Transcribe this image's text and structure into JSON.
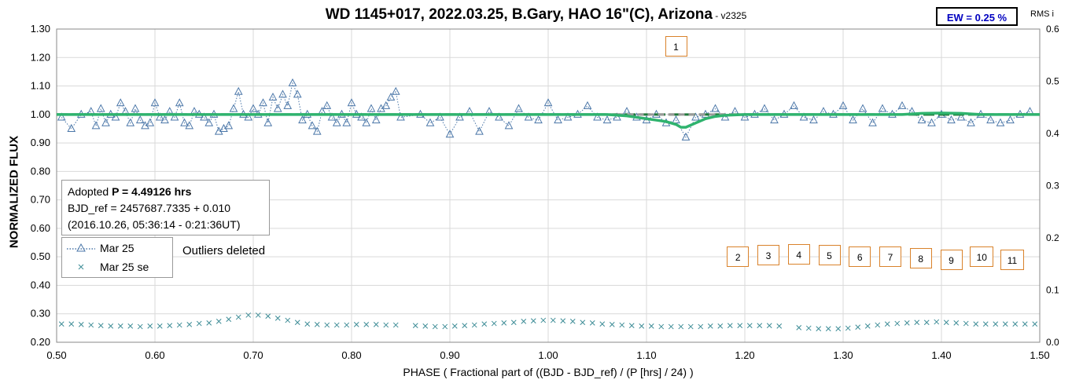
{
  "header": {
    "title": "WD 1145+017, 2022.03.25, B.Gary, HAO 16\"(C), Arizona",
    "version": " - v2325",
    "ew_badge": "EW = 0.25 %",
    "rms_label": "RMS i"
  },
  "info_box": {
    "line1_prefix": "Adopted ",
    "line1_bold": "P = 4.49126 hrs",
    "line2": "BJD_ref = 2457687.7335 + 0.010",
    "line3": "(2016.10.26, 05:36:14 - 0:21:36UT)"
  },
  "legend": {
    "items": [
      {
        "label": "Mar 25",
        "marker": "triangle",
        "color": "#4a76a8"
      },
      {
        "label": "Mar 25 se",
        "marker": "x",
        "color": "#3d8c96"
      }
    ]
  },
  "note": "Outliers deleted",
  "dip_tags": [
    "1",
    "2",
    "3",
    "4",
    "5",
    "6",
    "7",
    "8",
    "9",
    "10",
    "11"
  ],
  "colors": {
    "flux": "#4a76a8",
    "rms": "#3d8c96",
    "model": "#2fb36e",
    "baseline": "#1f7a3a",
    "reference": "#999999",
    "tag_border": "#d9822b"
  },
  "chart_data": {
    "type": "scatter",
    "xlabel": "PHASE ( Fractional part of ((BJD - BJD_ref) / (P [hrs] / 24) )",
    "ylabel": "NORMALIZED FLUX",
    "y2label": "RMS i",
    "xlim": [
      0.5,
      1.5
    ],
    "ylim": [
      0.2,
      1.3
    ],
    "y2lim": [
      0.0,
      0.6
    ],
    "x_ticks": [
      "0.50",
      "0.60",
      "0.70",
      "0.80",
      "0.90",
      "1.00",
      "1.10",
      "1.20",
      "1.30",
      "1.40",
      "1.50"
    ],
    "y_ticks": [
      "0.20",
      "0.30",
      "0.40",
      "0.50",
      "0.60",
      "0.70",
      "0.80",
      "0.90",
      "1.00",
      "1.10",
      "1.20",
      "1.30"
    ],
    "y2_ticks": [
      "0.0",
      "0.1",
      "0.2",
      "0.3",
      "0.4",
      "0.5",
      "0.6"
    ],
    "grid": true,
    "legend_position": "left",
    "series": [
      {
        "name": "Mar 25",
        "marker": "triangle",
        "x": [
          0.505,
          0.515,
          0.525,
          0.535,
          0.54,
          0.545,
          0.55,
          0.555,
          0.56,
          0.565,
          0.57,
          0.575,
          0.58,
          0.585,
          0.59,
          0.595,
          0.6,
          0.605,
          0.61,
          0.615,
          0.62,
          0.625,
          0.63,
          0.635,
          0.64,
          0.645,
          0.65,
          0.655,
          0.66,
          0.665,
          0.67,
          0.675,
          0.68,
          0.685,
          0.69,
          0.695,
          0.7,
          0.705,
          0.71,
          0.715,
          0.72,
          0.725,
          0.73,
          0.735,
          0.74,
          0.745,
          0.75,
          0.755,
          0.76,
          0.765,
          0.77,
          0.775,
          0.78,
          0.785,
          0.79,
          0.795,
          0.8,
          0.805,
          0.81,
          0.815,
          0.82,
          0.825,
          0.83,
          0.835,
          0.84,
          0.845,
          0.85,
          0.87,
          0.88,
          0.89,
          0.9,
          0.91,
          0.92,
          0.93,
          0.94,
          0.95,
          0.96,
          0.97,
          0.98,
          0.99,
          1.0,
          1.01,
          1.02,
          1.03,
          1.04,
          1.05,
          1.06,
          1.07,
          1.08,
          1.09,
          1.1,
          1.11,
          1.12,
          1.13,
          1.14,
          1.15,
          1.16,
          1.17,
          1.18,
          1.19,
          1.2,
          1.21,
          1.22,
          1.23,
          1.24,
          1.25,
          1.26,
          1.27,
          1.28,
          1.29,
          1.3,
          1.31,
          1.32,
          1.33,
          1.34,
          1.35,
          1.36,
          1.37,
          1.38,
          1.39,
          1.4,
          1.41,
          1.42,
          1.43,
          1.44,
          1.45,
          1.46,
          1.47,
          1.48,
          1.49
        ],
        "y": [
          0.99,
          0.95,
          1.0,
          1.01,
          0.96,
          1.02,
          0.97,
          1.0,
          0.99,
          1.04,
          1.01,
          0.97,
          1.02,
          0.98,
          0.96,
          0.97,
          1.04,
          0.99,
          0.98,
          1.01,
          0.99,
          1.04,
          0.97,
          0.96,
          1.01,
          1.0,
          0.99,
          0.97,
          1.0,
          0.94,
          0.95,
          0.96,
          1.02,
          1.08,
          1.0,
          0.99,
          1.02,
          1.0,
          1.04,
          0.97,
          1.06,
          1.02,
          1.07,
          1.03,
          1.11,
          1.07,
          0.98,
          1.0,
          0.96,
          0.94,
          1.01,
          1.03,
          0.99,
          0.97,
          1.0,
          0.97,
          1.04,
          1.0,
          0.99,
          0.97,
          1.02,
          0.98,
          1.02,
          1.03,
          1.06,
          1.08,
          0.99,
          1.0,
          0.97,
          0.99,
          0.93,
          0.99,
          1.01,
          0.94,
          1.01,
          0.99,
          0.96,
          1.02,
          0.99,
          0.98,
          1.04,
          0.98,
          0.99,
          1.0,
          1.03,
          0.99,
          0.98,
          0.99,
          1.01,
          0.99,
          0.98,
          1.0,
          0.97,
          0.98,
          0.92,
          0.99,
          1.0,
          1.02,
          0.99,
          1.01,
          0.99,
          1.0,
          1.02,
          0.98,
          1.0,
          1.03,
          0.99,
          0.98,
          1.01,
          1.0,
          1.03,
          0.98,
          1.02,
          0.97,
          1.02,
          1.0,
          1.03,
          1.01,
          0.98,
          0.97,
          1.0,
          0.98,
          0.99,
          0.97,
          1.0,
          0.98,
          0.97,
          0.98,
          1.0,
          1.01
        ]
      },
      {
        "name": "Mar 25 se",
        "marker": "x",
        "x": [
          0.505,
          0.515,
          0.525,
          0.535,
          0.545,
          0.555,
          0.565,
          0.575,
          0.585,
          0.595,
          0.605,
          0.615,
          0.625,
          0.635,
          0.645,
          0.655,
          0.665,
          0.675,
          0.685,
          0.695,
          0.705,
          0.715,
          0.725,
          0.735,
          0.745,
          0.755,
          0.765,
          0.775,
          0.785,
          0.795,
          0.805,
          0.815,
          0.825,
          0.835,
          0.845,
          0.865,
          0.875,
          0.885,
          0.895,
          0.905,
          0.915,
          0.925,
          0.935,
          0.945,
          0.955,
          0.965,
          0.975,
          0.985,
          0.995,
          1.005,
          1.015,
          1.025,
          1.035,
          1.045,
          1.055,
          1.065,
          1.075,
          1.085,
          1.095,
          1.105,
          1.115,
          1.125,
          1.135,
          1.145,
          1.155,
          1.165,
          1.175,
          1.185,
          1.195,
          1.205,
          1.215,
          1.225,
          1.235,
          1.255,
          1.265,
          1.275,
          1.285,
          1.295,
          1.305,
          1.315,
          1.325,
          1.335,
          1.345,
          1.355,
          1.365,
          1.375,
          1.385,
          1.395,
          1.405,
          1.415,
          1.425,
          1.435,
          1.445,
          1.455,
          1.465,
          1.475,
          1.485,
          1.495
        ],
        "y": [
          0.035,
          0.035,
          0.034,
          0.033,
          0.032,
          0.031,
          0.031,
          0.031,
          0.03,
          0.031,
          0.031,
          0.032,
          0.033,
          0.034,
          0.036,
          0.037,
          0.04,
          0.044,
          0.048,
          0.052,
          0.052,
          0.05,
          0.046,
          0.042,
          0.038,
          0.035,
          0.034,
          0.033,
          0.033,
          0.033,
          0.034,
          0.034,
          0.034,
          0.033,
          0.033,
          0.032,
          0.031,
          0.03,
          0.03,
          0.031,
          0.032,
          0.033,
          0.035,
          0.036,
          0.037,
          0.038,
          0.04,
          0.041,
          0.042,
          0.042,
          0.041,
          0.04,
          0.038,
          0.037,
          0.035,
          0.034,
          0.033,
          0.032,
          0.031,
          0.031,
          0.03,
          0.03,
          0.03,
          0.03,
          0.03,
          0.031,
          0.031,
          0.032,
          0.032,
          0.032,
          0.032,
          0.032,
          0.031,
          0.028,
          0.027,
          0.026,
          0.026,
          0.026,
          0.027,
          0.029,
          0.031,
          0.033,
          0.035,
          0.036,
          0.037,
          0.038,
          0.038,
          0.039,
          0.038,
          0.037,
          0.036,
          0.035,
          0.035,
          0.035,
          0.035,
          0.035,
          0.035,
          0.035
        ]
      },
      {
        "name": "Model",
        "type": "line",
        "x": [
          0.5,
          1.06,
          1.08,
          1.09,
          1.1,
          1.11,
          1.12,
          1.13,
          1.135,
          1.14,
          1.15,
          1.16,
          1.17,
          1.18,
          1.2,
          1.22,
          1.3,
          1.36,
          1.38,
          1.4,
          1.42,
          1.44,
          1.5
        ],
        "y": [
          1.0,
          1.0,
          0.995,
          0.99,
          0.985,
          0.98,
          0.975,
          0.965,
          0.955,
          0.955,
          0.97,
          0.985,
          0.993,
          0.997,
          1.0,
          1.0,
          1.0,
          1.0,
          1.004,
          1.005,
          1.004,
          1.0,
          1.0
        ]
      }
    ],
    "reference_line": {
      "y": 1.0,
      "style": "dashed",
      "x_range": [
        1.07,
        1.2
      ]
    },
    "annotations": [
      {
        "label": "1",
        "x": 1.13,
        "y": 1.24
      },
      {
        "label": "2",
        "x": 1.193,
        "y": 0.5
      },
      {
        "label": "3",
        "x": 1.224,
        "y": 0.505
      },
      {
        "label": "4",
        "x": 1.255,
        "y": 0.51
      },
      {
        "label": "5",
        "x": 1.286,
        "y": 0.505
      },
      {
        "label": "6",
        "x": 1.317,
        "y": 0.5
      },
      {
        "label": "7",
        "x": 1.348,
        "y": 0.5
      },
      {
        "label": "8",
        "x": 1.379,
        "y": 0.495
      },
      {
        "label": "9",
        "x": 1.41,
        "y": 0.49
      },
      {
        "label": "10",
        "x": 1.441,
        "y": 0.5
      },
      {
        "label": "11",
        "x": 1.472,
        "y": 0.49
      }
    ]
  }
}
